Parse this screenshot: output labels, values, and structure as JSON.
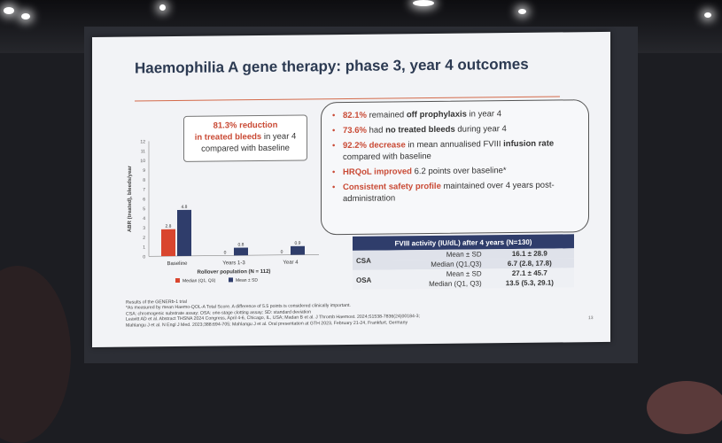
{
  "slide": {
    "title": "Haemophilia A gene therapy: phase 3, year 4 outcomes",
    "callout": {
      "line1": "81.3% reduction",
      "line2_emph": "in treated bleeds",
      "line2_rest": " in year 4",
      "line3": "compared with baseline"
    },
    "bullets": [
      {
        "emph": "82.1%",
        "mid": " remained ",
        "bold": "off prophylaxis",
        "rest": " in year 4"
      },
      {
        "emph": "73.6%",
        "mid": " had ",
        "bold": "no treated bleeds",
        "rest": " during year 4"
      },
      {
        "emph": "92.2% decrease",
        "mid": " in mean annualised FVIII ",
        "bold": "infusion rate",
        "rest": " compared with baseline"
      },
      {
        "emph": "HRQoL improved",
        "mid": " 6.2 points over baseline*",
        "bold": "",
        "rest": ""
      },
      {
        "emph": "Consistent safety profile",
        "mid": " maintained over 4 years post-administration",
        "bold": "",
        "rest": ""
      }
    ],
    "table": {
      "header": "FVIII activity (IU/dL) after 4 years (N=130)",
      "rows": [
        {
          "group": "CSA",
          "stat1": "Mean ± SD",
          "val1": "16.1 ± 28.9",
          "stat2": "Median (Q1,Q3)",
          "val2": "6.7 (2.8, 17.8)"
        },
        {
          "group": "OSA",
          "stat1": "Mean ± SD",
          "val1": "27.1 ± 45.7",
          "stat2": "Median (Q1, Q3)",
          "val2": "13.5 (5.3, 29.1)"
        }
      ]
    },
    "footnotes": [
      "Results of the GENERb-1 trial",
      "*As measured by mean Haemo-QOL-A Total Score. A difference of 5.5 points is considered clinically important.",
      "CSA: chromogenic substrate assay; OSA: one-stage clotting assay; SD: standard deviation",
      "Leavitt AD et al. Abstract THSNA 2024 Congress, April 4-6, Chicago, IL, USA; Madan B et al. J Thromb Haemost. 2024;S1538-7836(24)00184-3;",
      "Mahlangu J et al. N Engl J Med. 2023;388:694-705; Mahlangu J et al. Oral presentation at GTH 2023, February 21-24, Frankfurt, Germany"
    ],
    "page_number": "13"
  },
  "chart_data": {
    "type": "bar",
    "categories": [
      "Baseline",
      "Years 1-3",
      "Year 4"
    ],
    "series": [
      {
        "name": "Median (Q1, Q3)",
        "values": [
          2.8,
          0,
          0
        ],
        "labels": [
          "2.8",
          "0",
          "0"
        ],
        "color": "#d9452e"
      },
      {
        "name": "Mean ± SD",
        "values": [
          4.8,
          0.8,
          0.9
        ],
        "labels": [
          "4.8",
          "0.8",
          "0.9"
        ],
        "color": "#2f3d6b"
      }
    ],
    "ylabel": "ABR (treated), bleeds/year",
    "xlabel": "Rollover population (N = 112)",
    "ylim": [
      0,
      12
    ],
    "yticks": [
      0,
      1,
      2,
      3,
      4,
      5,
      6,
      7,
      8,
      9,
      10,
      11,
      12
    ],
    "legend": "bottom"
  }
}
